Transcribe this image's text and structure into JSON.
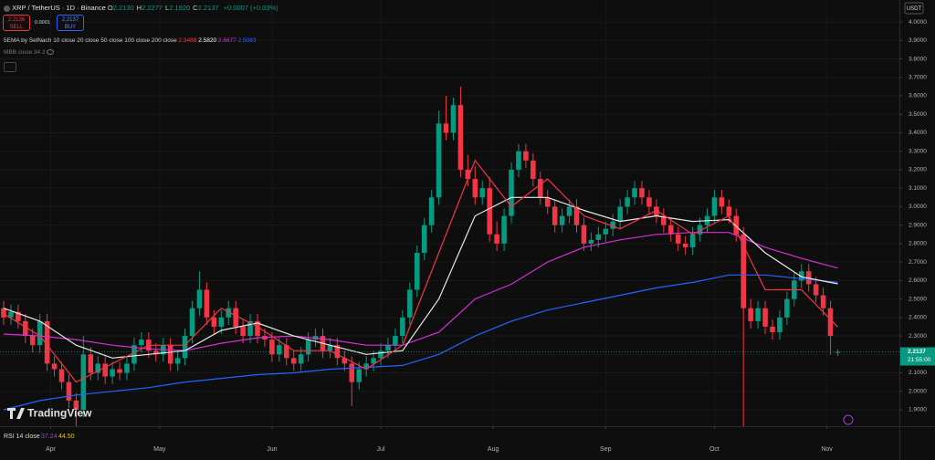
{
  "ui": {
    "symbol": "XRP / TetherUS · 1D · Binance",
    "ohlc": [
      {
        "k": "O",
        "v": "2.2130"
      },
      {
        "k": "H",
        "v": "2.2277"
      },
      {
        "k": "L",
        "v": "2.1920"
      },
      {
        "k": "C",
        "v": "2.2137"
      }
    ],
    "change": "+0.0007 (+0.03%)",
    "sell_price": "2.2136",
    "sell": "SELL",
    "spread": "0.0001",
    "buy_price": "2.2137",
    "buy": "BUY",
    "indicator": "5EMA by SelNach 10 close 20 close 50 close 100 close 200 close",
    "indicator_values": [
      "2.3488",
      "2.5820",
      "2.6677",
      "2.5083"
    ],
    "mbb": "MBB close 34 2",
    "rsi": "RSI 14 close",
    "rsi_values": [
      "37.24",
      "44.50"
    ],
    "currency": "USDT",
    "logo": "TradingView",
    "countdown": "21:55:00"
  },
  "chart_data": {
    "type": "candlestick",
    "up_color": "#089981",
    "down_color": "#f23645",
    "grid": true,
    "xlim": [
      -1,
      247
    ],
    "ylim": [
      1.811,
      4.119
    ],
    "xticks": [
      {
        "value": 13,
        "label": "Apr"
      },
      {
        "value": 43,
        "label": "May"
      },
      {
        "value": 74,
        "label": "Jun"
      },
      {
        "value": 104,
        "label": "Jul"
      },
      {
        "value": 135,
        "label": "Aug"
      },
      {
        "value": 166,
        "label": "Sep"
      },
      {
        "value": 196,
        "label": "Oct"
      },
      {
        "value": 227,
        "label": "Nov"
      }
    ],
    "yticks": [
      {
        "value": 4,
        "label": "4.0000"
      },
      {
        "value": 3.9,
        "label": "3.9000"
      },
      {
        "value": 3.8,
        "label": "3.8000"
      },
      {
        "value": 3.7,
        "label": "3.7000"
      },
      {
        "value": 3.6,
        "label": "3.6000"
      },
      {
        "value": 3.5,
        "label": "3.5000"
      },
      {
        "value": 3.4,
        "label": "3.4000"
      },
      {
        "value": 3.3,
        "label": "3.3000"
      },
      {
        "value": 3.2,
        "label": "3.2000"
      },
      {
        "value": 3.1,
        "label": "3.1000"
      },
      {
        "value": 3,
        "label": "3.0000"
      },
      {
        "value": 2.9,
        "label": "2.9000"
      },
      {
        "value": 2.8,
        "label": "2.8000"
      },
      {
        "value": 2.7,
        "label": "2.7000"
      },
      {
        "value": 2.6,
        "label": "2.6000"
      },
      {
        "value": 2.5,
        "label": "2.5000"
      },
      {
        "value": 2.4,
        "label": "2.4000"
      },
      {
        "value": 2.3,
        "label": "2.3000"
      },
      {
        "value": 2.2,
        "label": "2.2000"
      },
      {
        "value": 2.1,
        "label": "2.1000"
      },
      {
        "value": 2,
        "label": "2.0000"
      },
      {
        "value": 1.9,
        "label": "1.9000"
      }
    ],
    "last_price": 2.2137,
    "x": [
      0,
      2,
      4,
      6,
      8,
      10,
      12,
      14,
      16,
      18,
      20,
      22,
      24,
      26,
      28,
      30,
      32,
      34,
      36,
      38,
      40,
      42,
      44,
      46,
      48,
      50,
      52,
      54,
      56,
      58,
      60,
      62,
      64,
      66,
      68,
      70,
      72,
      74,
      76,
      78,
      80,
      82,
      84,
      86,
      88,
      90,
      92,
      94,
      96,
      98,
      100,
      102,
      104,
      106,
      108,
      110,
      112,
      114,
      116,
      118,
      120,
      122,
      124,
      126,
      128,
      130,
      132,
      134,
      136,
      138,
      140,
      142,
      144,
      146,
      148,
      150,
      152,
      154,
      156,
      158,
      160,
      162,
      164,
      166,
      168,
      170,
      172,
      174,
      176,
      178,
      180,
      182,
      184,
      186,
      188,
      190,
      192,
      194,
      196,
      198,
      200,
      202,
      204,
      206,
      208,
      210,
      212,
      214,
      216,
      218,
      220,
      222,
      224,
      226,
      228,
      230
    ],
    "open": [
      2.45,
      2.4,
      2.43,
      2.38,
      2.3,
      2.25,
      2.38,
      2.15,
      2.12,
      2.05,
      1.95,
      1.9,
      2.2,
      2.1,
      2.15,
      2.08,
      2.12,
      2.1,
      2.15,
      2.25,
      2.28,
      2.22,
      2.2,
      2.25,
      2.15,
      2.18,
      2.3,
      2.45,
      2.55,
      2.4,
      2.35,
      2.4,
      2.45,
      2.35,
      2.3,
      2.38,
      2.3,
      2.28,
      2.2,
      2.25,
      2.18,
      2.15,
      2.2,
      2.28,
      2.3,
      2.22,
      2.25,
      2.18,
      2.15,
      2.05,
      2.12,
      2.15,
      2.18,
      2.22,
      2.25,
      2.3,
      2.4,
      2.55,
      2.75,
      2.9,
      3.05,
      3.45,
      3.4,
      3.55,
      3.2,
      3.15,
      3.05,
      3.1,
      2.85,
      2.8,
      2.95,
      3.2,
      3.3,
      3.25,
      3.15,
      3.05,
      3.0,
      2.9,
      2.95,
      3.0,
      2.9,
      2.8,
      2.82,
      2.85,
      2.88,
      2.92,
      3.0,
      3.05,
      3.1,
      3.05,
      3.0,
      2.95,
      2.9,
      2.85,
      2.8,
      2.78,
      2.85,
      2.9,
      2.95,
      3.05,
      3.0,
      2.95,
      2.85,
      2.45,
      2.38,
      2.45,
      2.35,
      2.32,
      2.4,
      2.5,
      2.6,
      2.65,
      2.58,
      2.52,
      2.45,
      2.213
    ],
    "high": [
      2.49,
      2.47,
      2.47,
      2.42,
      2.34,
      2.42,
      2.42,
      2.19,
      2.16,
      2.09,
      1.99,
      2.3,
      2.24,
      2.19,
      2.19,
      2.16,
      2.16,
      2.19,
      2.29,
      2.32,
      2.32,
      2.26,
      2.29,
      2.29,
      2.22,
      2.34,
      2.49,
      2.65,
      2.59,
      2.44,
      2.44,
      2.49,
      2.49,
      2.39,
      2.42,
      2.42,
      2.34,
      2.32,
      2.29,
      2.29,
      2.22,
      2.24,
      2.32,
      2.34,
      2.34,
      2.29,
      2.29,
      2.22,
      2.19,
      2.16,
      2.19,
      2.22,
      2.26,
      2.29,
      2.34,
      2.44,
      2.59,
      2.79,
      2.94,
      3.09,
      3.52,
      3.6,
      3.59,
      3.65,
      3.28,
      3.22,
      3.14,
      3.16,
      2.92,
      2.99,
      3.24,
      3.34,
      3.34,
      3.29,
      3.19,
      3.09,
      3.04,
      2.99,
      3.04,
      3.04,
      2.94,
      2.86,
      2.89,
      2.92,
      2.96,
      3.04,
      3.09,
      3.14,
      3.14,
      3.09,
      3.04,
      2.99,
      2.94,
      2.89,
      2.84,
      2.89,
      2.94,
      2.99,
      3.09,
      3.09,
      3.04,
      2.99,
      2.89,
      2.5,
      2.49,
      2.49,
      2.39,
      2.44,
      2.54,
      2.64,
      2.69,
      2.69,
      2.62,
      2.56,
      2.49,
      2.2277
    ],
    "low": [
      2.36,
      2.36,
      2.34,
      2.26,
      2.21,
      2.21,
      2.11,
      2.08,
      2.01,
      1.91,
      1.8,
      1.86,
      2.06,
      2.06,
      2.04,
      2.04,
      2.06,
      2.06,
      2.11,
      2.21,
      2.18,
      2.16,
      2.16,
      2.11,
      2.11,
      2.14,
      2.26,
      2.41,
      2.36,
      2.31,
      2.31,
      2.36,
      2.31,
      2.26,
      2.26,
      2.26,
      2.24,
      2.16,
      2.16,
      2.14,
      2.11,
      2.11,
      2.16,
      2.24,
      2.18,
      2.18,
      2.14,
      2.11,
      1.92,
      2.01,
      2.08,
      2.11,
      2.14,
      2.18,
      2.21,
      2.26,
      2.36,
      2.51,
      2.71,
      2.86,
      3.01,
      3.36,
      3.36,
      3.16,
      3.11,
      3.01,
      3.01,
      2.81,
      2.76,
      2.76,
      2.91,
      3.16,
      3.21,
      3.11,
      3.01,
      2.96,
      2.86,
      2.86,
      2.91,
      2.86,
      2.76,
      2.76,
      2.78,
      2.81,
      2.84,
      2.88,
      2.96,
      3.01,
      3.01,
      2.96,
      2.91,
      2.86,
      2.81,
      2.76,
      2.74,
      2.74,
      2.81,
      2.86,
      2.91,
      2.96,
      2.91,
      2.81,
      1.7,
      2.34,
      2.34,
      2.31,
      2.28,
      2.28,
      2.36,
      2.46,
      2.56,
      2.54,
      2.48,
      2.41,
      2.2,
      2.192
    ],
    "close": [
      2.4,
      2.43,
      2.38,
      2.3,
      2.25,
      2.38,
      2.15,
      2.12,
      2.05,
      1.95,
      1.9,
      2.2,
      2.1,
      2.15,
      2.08,
      2.12,
      2.1,
      2.15,
      2.25,
      2.28,
      2.22,
      2.2,
      2.25,
      2.15,
      2.18,
      2.3,
      2.45,
      2.55,
      2.4,
      2.35,
      2.4,
      2.45,
      2.35,
      2.3,
      2.38,
      2.3,
      2.28,
      2.2,
      2.25,
      2.18,
      2.15,
      2.2,
      2.28,
      2.3,
      2.22,
      2.25,
      2.18,
      2.15,
      2.05,
      2.12,
      2.15,
      2.18,
      2.22,
      2.25,
      2.3,
      2.4,
      2.55,
      2.75,
      2.9,
      3.05,
      3.45,
      3.4,
      3.55,
      3.2,
      3.15,
      3.05,
      3.1,
      2.85,
      2.8,
      2.95,
      3.2,
      3.3,
      3.25,
      3.15,
      3.05,
      3.0,
      2.9,
      2.95,
      3.0,
      2.9,
      2.8,
      2.82,
      2.85,
      2.88,
      2.92,
      3.0,
      3.05,
      3.1,
      3.05,
      3.0,
      2.95,
      2.9,
      2.85,
      2.8,
      2.78,
      2.85,
      2.9,
      2.95,
      3.05,
      3.0,
      2.95,
      2.85,
      2.45,
      2.38,
      2.45,
      2.35,
      2.32,
      2.4,
      2.5,
      2.6,
      2.65,
      2.58,
      2.52,
      2.45,
      2.3,
      2.2137
    ],
    "series": [
      {
        "color": "#2962ff",
        "x": [
          0,
          10,
          20,
          30,
          40,
          50,
          60,
          70,
          80,
          90,
          100,
          110,
          120,
          130,
          140,
          150,
          160,
          170,
          180,
          190,
          200,
          210,
          220,
          230
        ],
        "values": [
          1.9,
          1.95,
          1.98,
          2.0,
          2.02,
          2.05,
          2.07,
          2.09,
          2.1,
          2.12,
          2.13,
          2.14,
          2.2,
          2.3,
          2.38,
          2.44,
          2.48,
          2.52,
          2.56,
          2.59,
          2.63,
          2.63,
          2.61,
          2.59
        ]
      },
      {
        "color": "#d62fd6",
        "x": [
          0,
          10,
          20,
          30,
          40,
          50,
          60,
          70,
          80,
          90,
          100,
          110,
          120,
          130,
          140,
          150,
          160,
          170,
          180,
          190,
          200,
          210,
          220,
          230
        ],
        "values": [
          2.31,
          2.3,
          2.28,
          2.25,
          2.23,
          2.22,
          2.26,
          2.29,
          2.3,
          2.28,
          2.25,
          2.25,
          2.32,
          2.5,
          2.58,
          2.7,
          2.78,
          2.82,
          2.85,
          2.86,
          2.86,
          2.78,
          2.72,
          2.6677
        ]
      },
      {
        "color": "#e8e8e8",
        "x": [
          0,
          10,
          20,
          30,
          40,
          50,
          60,
          70,
          80,
          90,
          100,
          110,
          120,
          130,
          140,
          150,
          160,
          170,
          180,
          190,
          200,
          210,
          220,
          230
        ],
        "values": [
          2.45,
          2.38,
          2.25,
          2.18,
          2.2,
          2.22,
          2.33,
          2.37,
          2.3,
          2.25,
          2.2,
          2.22,
          2.5,
          2.95,
          3.05,
          3.05,
          2.98,
          2.92,
          2.95,
          2.92,
          2.93,
          2.75,
          2.62,
          2.582
        ]
      },
      {
        "color": "#f23645",
        "x": [
          0,
          10,
          20,
          30,
          40,
          50,
          60,
          70,
          80,
          90,
          100,
          110,
          120,
          130,
          140,
          150,
          160,
          170,
          180,
          190,
          200,
          210,
          220,
          230
        ],
        "values": [
          2.42,
          2.3,
          2.05,
          2.15,
          2.25,
          2.25,
          2.45,
          2.35,
          2.22,
          2.22,
          2.12,
          2.25,
          2.75,
          3.25,
          3.0,
          3.15,
          2.95,
          2.88,
          2.98,
          2.85,
          2.95,
          2.55,
          2.55,
          2.3488
        ]
      }
    ]
  }
}
